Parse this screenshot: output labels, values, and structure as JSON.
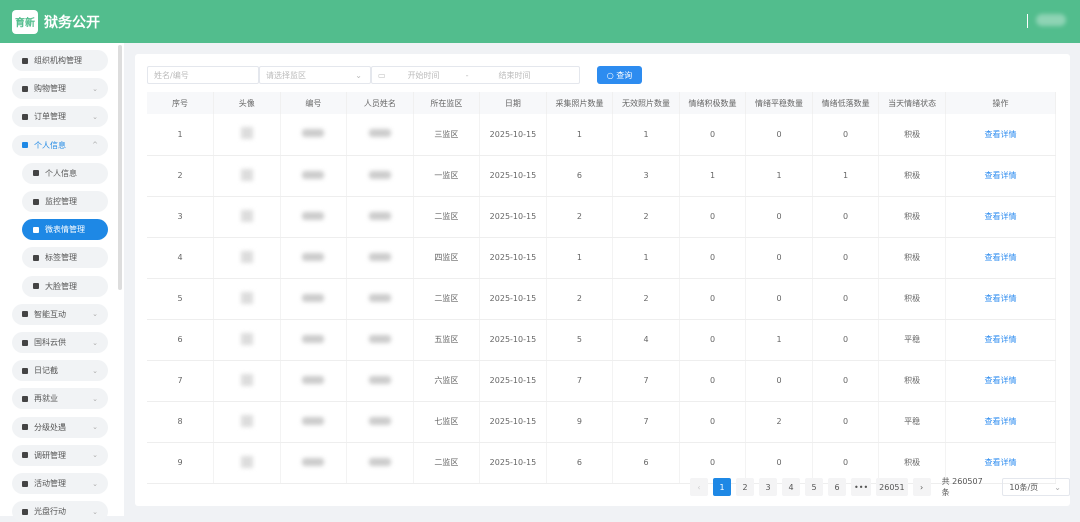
{
  "header": {
    "logo": "育新",
    "title": "狱务公开"
  },
  "sidebar": {
    "items": [
      {
        "label": "组织机构管理",
        "chev": false
      },
      {
        "label": "购物管理",
        "chev": true
      },
      {
        "label": "订单管理",
        "chev": true
      },
      {
        "label": "个人信息",
        "chev": true,
        "open": true
      },
      {
        "label": "个人信息",
        "sub": true
      },
      {
        "label": "监控管理",
        "sub": true
      },
      {
        "label": "微表情管理",
        "sub": true,
        "active": true
      },
      {
        "label": "标签管理",
        "sub": true
      },
      {
        "label": "大脸管理",
        "sub": true
      },
      {
        "label": "智能互动",
        "chev": true
      },
      {
        "label": "国科云供",
        "chev": true
      },
      {
        "label": "日记截",
        "chev": true
      },
      {
        "label": "再就业",
        "chev": true
      },
      {
        "label": "分级处遇",
        "chev": true
      },
      {
        "label": "调研管理",
        "chev": true
      },
      {
        "label": "活动管理",
        "chev": true
      },
      {
        "label": "光盘行动",
        "chev": true
      }
    ]
  },
  "filters": {
    "name_placeholder": "姓名/编号",
    "area_placeholder": "请选择监区",
    "start_placeholder": "开始时间",
    "sep": "-",
    "end_placeholder": "结束时间",
    "query_label": "查询"
  },
  "table": {
    "columns": [
      "序号",
      "头像",
      "编号",
      "人员姓名",
      "所在监区",
      "日期",
      "采集照片数量",
      "无效照片数量",
      "情绪积极数量",
      "情绪平稳数量",
      "情绪低落数量",
      "当天情绪状态",
      "操作"
    ],
    "action_label": "查看详情",
    "rows": [
      [
        "1",
        "三监区",
        "2025-10-15",
        "1",
        "1",
        "0",
        "0",
        "0",
        "积极"
      ],
      [
        "2",
        "一监区",
        "2025-10-15",
        "6",
        "3",
        "1",
        "1",
        "1",
        "积极"
      ],
      [
        "3",
        "二监区",
        "2025-10-15",
        "2",
        "2",
        "0",
        "0",
        "0",
        "积极"
      ],
      [
        "4",
        "四监区",
        "2025-10-15",
        "1",
        "1",
        "0",
        "0",
        "0",
        "积极"
      ],
      [
        "5",
        "二监区",
        "2025-10-15",
        "2",
        "2",
        "0",
        "0",
        "0",
        "积极"
      ],
      [
        "6",
        "五监区",
        "2025-10-15",
        "5",
        "4",
        "0",
        "1",
        "0",
        "平稳"
      ],
      [
        "7",
        "六监区",
        "2025-10-15",
        "7",
        "7",
        "0",
        "0",
        "0",
        "积极"
      ],
      [
        "8",
        "七监区",
        "2025-10-15",
        "9",
        "7",
        "0",
        "2",
        "0",
        "平稳"
      ],
      [
        "9",
        "二监区",
        "2025-10-15",
        "6",
        "6",
        "0",
        "0",
        "0",
        "积极"
      ]
    ]
  },
  "pagination": {
    "pages": [
      "1",
      "2",
      "3",
      "4",
      "5",
      "6",
      "•••",
      "26051"
    ],
    "current": "1",
    "total": "共 260507 条",
    "page_size": "10条/页"
  }
}
